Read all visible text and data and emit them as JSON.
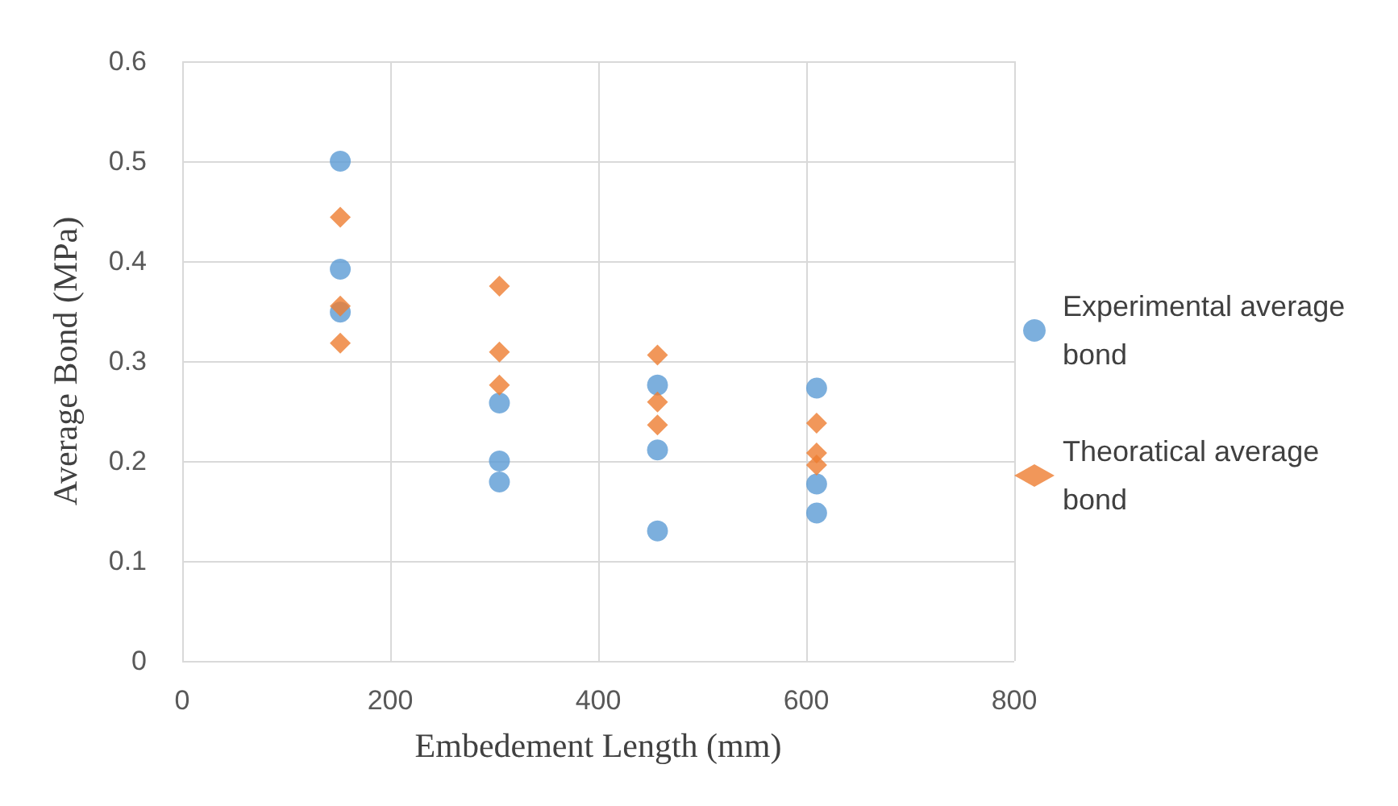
{
  "chart_data": {
    "type": "scatter",
    "xlabel": "Embedement Length (mm)",
    "ylabel": "Average Bond (MPa)",
    "xlim": [
      0,
      800
    ],
    "xticks": [
      0,
      200,
      400,
      600,
      800
    ],
    "ylim": [
      0,
      0.6
    ],
    "yticks": [
      0,
      0.1,
      0.2,
      0.3,
      0.4,
      0.5,
      0.6
    ],
    "grid": true,
    "legend": "right",
    "series": [
      {
        "name": "Experimental average bond",
        "color": "#5b9bd5",
        "marker": "circle",
        "x": [
          152,
          152,
          152,
          305,
          305,
          305,
          457,
          457,
          457,
          610,
          610,
          610
        ],
        "values": [
          0.5,
          0.392,
          0.349,
          0.258,
          0.2,
          0.179,
          0.276,
          0.211,
          0.13,
          0.273,
          0.177,
          0.148
        ]
      },
      {
        "name": "Theoratical average bond",
        "color": "#ed7d31",
        "marker": "diamond",
        "x": [
          152,
          152,
          152,
          305,
          305,
          305,
          457,
          457,
          457,
          610,
          610,
          610
        ],
        "values": [
          0.444,
          0.355,
          0.318,
          0.375,
          0.309,
          0.276,
          0.306,
          0.259,
          0.236,
          0.238,
          0.208,
          0.196
        ]
      }
    ]
  }
}
